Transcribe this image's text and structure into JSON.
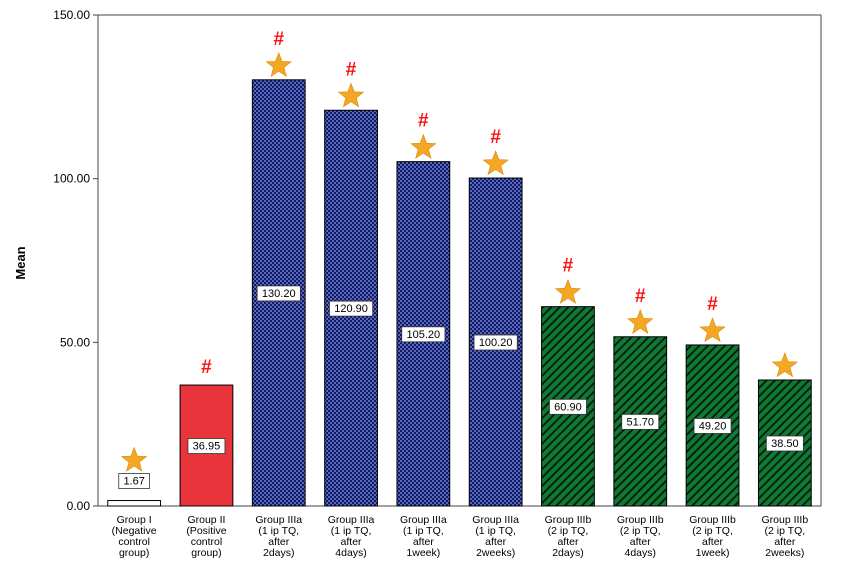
{
  "chart_data": {
    "type": "bar",
    "ylabel": "Mean",
    "xlabel": "",
    "ylim": [
      0,
      150
    ],
    "y_ticks": [
      "0.00",
      "50.00",
      "100.00",
      "150.00"
    ],
    "y_tick_values": [
      0,
      50,
      100,
      150
    ],
    "grid": false,
    "categories": [
      [
        "Group I",
        "(Negative",
        "control",
        "group)"
      ],
      [
        "Group II",
        "(Positive",
        "control",
        "group)"
      ],
      [
        "Group IIIa",
        "(1 ip TQ,",
        "after",
        "2days)"
      ],
      [
        "Group IIIa",
        "(1 ip TQ,",
        "after",
        "4days)"
      ],
      [
        "Group IIIa",
        "(1 ip TQ,",
        "after",
        "1week)"
      ],
      [
        "Group IIIa",
        "(1 ip TQ,",
        "after",
        "2weeks)"
      ],
      [
        "Group IIIb",
        "(2 ip TQ,",
        "after",
        "2days)"
      ],
      [
        "Group IIIb",
        "(2 ip TQ,",
        "after",
        "4days)"
      ],
      [
        "Group IIIb",
        "(2 ip TQ,",
        "after",
        "1week)"
      ],
      [
        "Group IIIb",
        "(2 ip TQ,",
        "after",
        "2weeks)"
      ]
    ],
    "values": [
      1.67,
      36.95,
      130.2,
      120.9,
      105.2,
      100.2,
      60.9,
      51.7,
      49.2,
      38.5
    ],
    "value_labels": [
      "1.67",
      "36.95",
      "130.20",
      "120.90",
      "105.20",
      "100.20",
      "60.90",
      "51.70",
      "49.20",
      "38.50"
    ],
    "styles": [
      "white",
      "red",
      "blue-check",
      "blue-check",
      "blue-check",
      "blue-check",
      "green-stripe",
      "green-stripe",
      "green-stripe",
      "green-stripe"
    ],
    "markers": {
      "star": [
        true,
        false,
        true,
        true,
        true,
        true,
        true,
        true,
        true,
        true
      ],
      "hash": [
        false,
        true,
        true,
        true,
        true,
        true,
        true,
        true,
        true,
        false
      ]
    },
    "hash_symbol": "#",
    "colors": {
      "red": "#e8343a",
      "blue": "#0d1a6e",
      "green": "#0e7a34",
      "star": "#f5a623",
      "hash": "#ff1010"
    }
  }
}
